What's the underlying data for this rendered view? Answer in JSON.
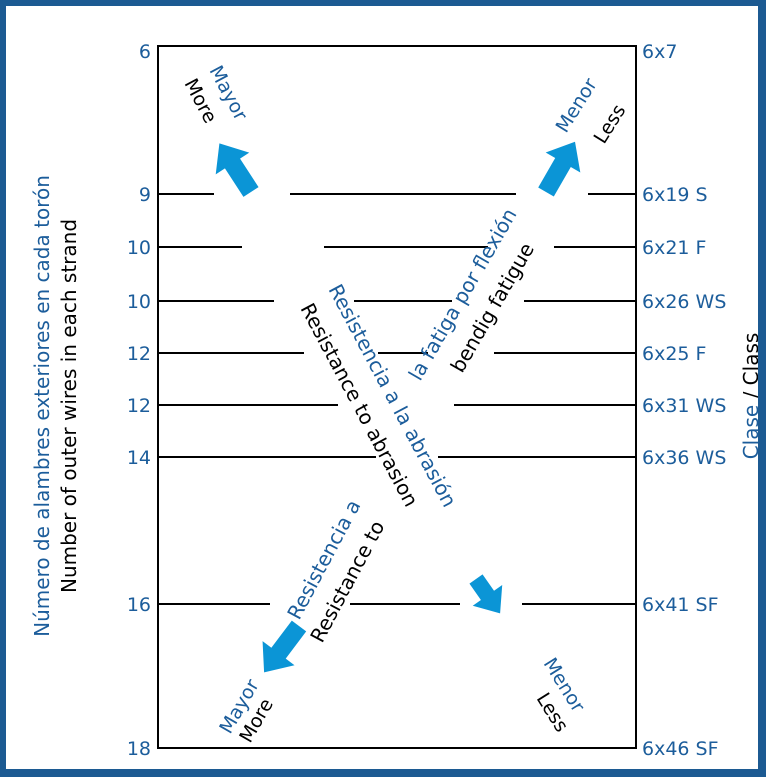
{
  "colors": {
    "blue_text": "#1c5d9b",
    "arrow": "#0b95d6",
    "frame": "#1c5a92",
    "line": "#000000"
  },
  "y_axis": {
    "title_es": "Número de alambres exteriores en cada torón",
    "title_en": "Number of outer wires in each strand"
  },
  "right_axis": {
    "title_es": "Clase",
    "separator": " / ",
    "title_en": "Class"
  },
  "rows": [
    {
      "left": "6",
      "right": "6x7"
    },
    {
      "left": "9",
      "right": "6x19 S"
    },
    {
      "left": "10",
      "right": "6x21 F"
    },
    {
      "left": "10",
      "right": "6x26 WS"
    },
    {
      "left": "12",
      "right": "6x25 F"
    },
    {
      "left": "12",
      "right": "6x31 WS"
    },
    {
      "left": "14",
      "right": "6x36 WS"
    },
    {
      "left": "16",
      "right": "6x41 SF"
    },
    {
      "left": "18",
      "right": "6x46 SF"
    }
  ],
  "fatigue_arrow": {
    "label_es": "la fatiga por flexión",
    "label_en": "bendig fatigue",
    "top_es": "Menor",
    "top_en": "Less",
    "top_left_es": "Mayor",
    "top_left_en": "More"
  },
  "abrasion_arrow": {
    "label_es": "Resistencia a la abrasión",
    "label_en": "Resistance to abrasion",
    "low_label_es": "Resistencia a",
    "low_label_en": "Resistance to",
    "bottom_left_es": "Mayor",
    "bottom_left_en": "More",
    "bottom_right_es": "Menor",
    "bottom_right_en": "Less"
  },
  "icons": {
    "arrows": "blue-arrow-icon"
  }
}
